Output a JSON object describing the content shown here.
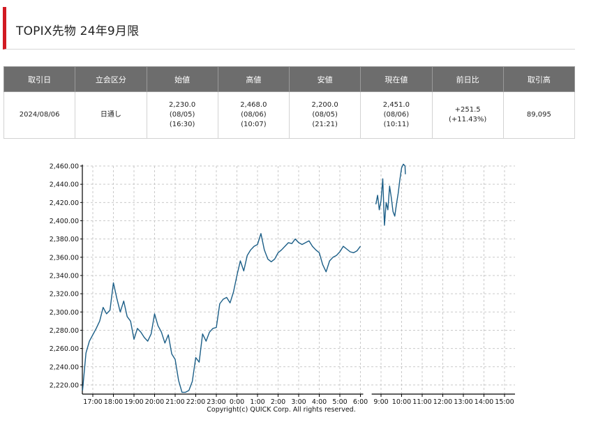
{
  "header": {
    "title": "TOPIX先物 24年9月限"
  },
  "table": {
    "headers": [
      "取引日",
      "立会区分",
      "始値",
      "高値",
      "安値",
      "現在値",
      "前日比",
      "取引高"
    ],
    "row": {
      "date": "2024/08/06",
      "session": "日通し",
      "open": {
        "price": "2,230.0",
        "date": "(08/05)",
        "time": "(16:30)"
      },
      "high": {
        "price": "2,468.0",
        "date": "(08/06)",
        "time": "(10:07)"
      },
      "low": {
        "price": "2,200.0",
        "date": "(08/05)",
        "time": "(21:21)"
      },
      "current": {
        "price": "2,451.0",
        "date": "(08/06)",
        "time": "(10:11)"
      },
      "change": {
        "value": "+251.5",
        "percent": "(+11.43%)"
      },
      "volume": "89,095"
    }
  },
  "chart_data": {
    "type": "line",
    "ylim": [
      2210,
      2460
    ],
    "y_ticks": [
      "2,220.00",
      "2,240.00",
      "2,260.00",
      "2,280.00",
      "2,300.00",
      "2,320.00",
      "2,340.00",
      "2,360.00",
      "2,380.00",
      "2,400.00",
      "2,420.00",
      "2,440.00",
      "2,460.00"
    ],
    "y_tick_values": [
      2220,
      2240,
      2260,
      2280,
      2300,
      2320,
      2340,
      2360,
      2380,
      2400,
      2420,
      2440,
      2460
    ],
    "x_ticks": [
      "17:00",
      "18:00",
      "19:00",
      "20:00",
      "21:00",
      "22:00",
      "23:00",
      "0:00",
      "1:00",
      "2:00",
      "3:00",
      "4:00",
      "5:00",
      "6:00",
      "9:00",
      "10:00",
      "11:00",
      "12:00",
      "13:00",
      "14:00",
      "15:00"
    ],
    "grid": true,
    "line_color": "#1b5e87",
    "footer": "Copyright(c) QUICK Corp. All rights reserved.",
    "series": [
      {
        "x": [
          "16:30",
          "16:40",
          "16:50",
          "17:00",
          "17:10",
          "17:20",
          "17:30",
          "17:40",
          "17:50",
          "18:00",
          "18:10",
          "18:20",
          "18:30",
          "18:40",
          "18:50",
          "19:00",
          "19:10",
          "19:20",
          "19:30",
          "19:40",
          "19:50",
          "20:00",
          "20:10",
          "20:20",
          "20:30",
          "20:40",
          "20:50",
          "21:00",
          "21:10",
          "21:20",
          "21:30",
          "21:40",
          "21:50",
          "22:00",
          "22:10",
          "22:20",
          "22:30",
          "22:40",
          "22:50",
          "23:00",
          "23:10",
          "23:20",
          "23:30",
          "23:40",
          "23:50",
          "0:00",
          "0:10",
          "0:20",
          "0:30",
          "0:40",
          "0:50",
          "1:00",
          "1:10",
          "1:20",
          "1:30",
          "1:40",
          "1:50",
          "2:00",
          "2:10",
          "2:20",
          "2:30",
          "2:40",
          "2:50",
          "3:00",
          "3:10",
          "3:20",
          "3:30",
          "3:40",
          "3:50",
          "4:00",
          "4:10",
          "4:20",
          "4:30",
          "4:40",
          "4:50",
          "5:00",
          "5:10",
          "5:20",
          "5:30",
          "5:40",
          "5:50",
          "6:00"
        ],
        "y": [
          2214,
          2255,
          2268,
          2275,
          2282,
          2290,
          2305,
          2298,
          2302,
          2332,
          2315,
          2300,
          2312,
          2295,
          2290,
          2270,
          2282,
          2278,
          2272,
          2268,
          2276,
          2298,
          2285,
          2278,
          2266,
          2275,
          2254,
          2248,
          2225,
          2212,
          2212,
          2214,
          2224,
          2250,
          2245,
          2276,
          2268,
          2278,
          2282,
          2283,
          2309,
          2314,
          2316,
          2310,
          2322,
          2340,
          2356,
          2345,
          2362,
          2368,
          2372,
          2374,
          2386,
          2368,
          2358,
          2355,
          2358,
          2365,
          2368,
          2372,
          2376,
          2375,
          2380,
          2376,
          2374,
          2376,
          2378,
          2372,
          2368,
          2365,
          2352,
          2344,
          2356,
          2360,
          2362,
          2366,
          2372,
          2369,
          2366,
          2365,
          2367,
          2372
        ]
      },
      {
        "x": [
          "8:45",
          "8:50",
          "8:55",
          "9:00",
          "9:05",
          "9:10",
          "9:15",
          "9:20",
          "9:25",
          "9:30",
          "9:35",
          "9:40",
          "9:45",
          "9:50",
          "9:55",
          "10:00",
          "10:05",
          "10:10",
          "10:11"
        ],
        "y": [
          2418,
          2428,
          2412,
          2422,
          2446,
          2395,
          2420,
          2412,
          2438,
          2425,
          2410,
          2405,
          2418,
          2430,
          2445,
          2458,
          2462,
          2460,
          2451
        ]
      }
    ]
  }
}
